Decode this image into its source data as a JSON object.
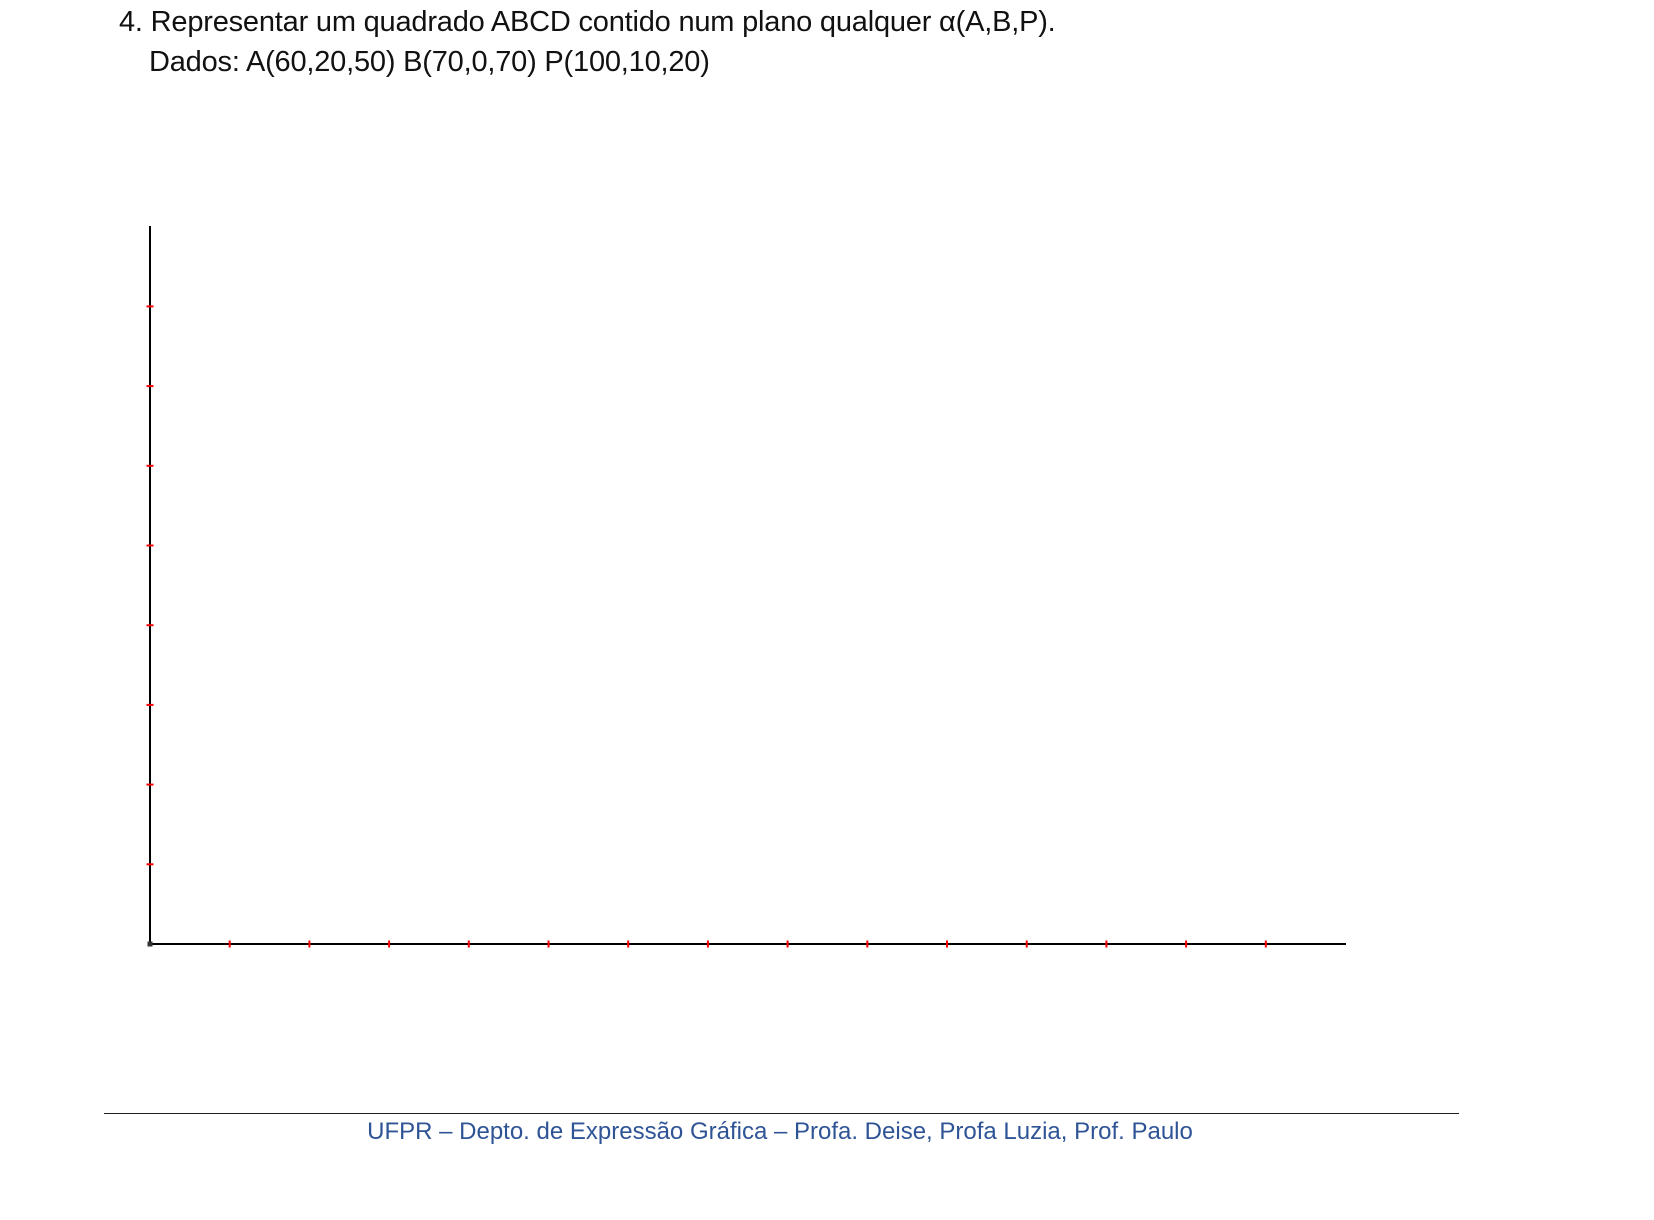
{
  "exercise": {
    "statement": "4. Representar um quadrado ABCD contido num plano qualquer α(A,B,P).",
    "data_line": "Dados: A(60,20,50)  B(70,0,70)  P(100,10,20)"
  },
  "axes": {
    "vertical_ticks": 8,
    "horizontal_ticks": 14,
    "axis_color": "#000000",
    "tick_color": "#ff0000"
  },
  "footer": {
    "text": "UFPR – Depto. de Expressão Gráfica – Profa. Deise, Profa Luzia, Prof. Paulo",
    "color": "#2f5496"
  }
}
